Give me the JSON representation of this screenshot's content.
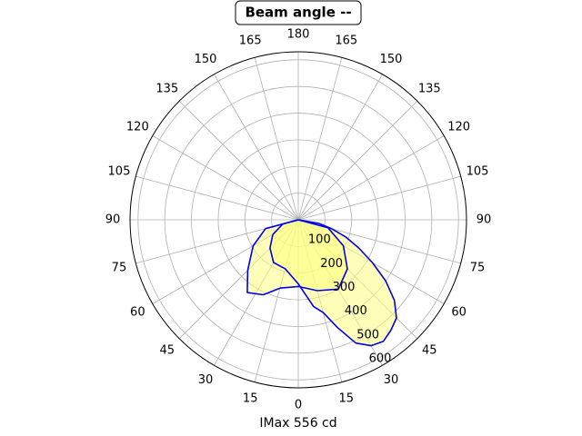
{
  "chart_data": {
    "type": "polar",
    "title": "Beam angle --",
    "xlabel": "IMax 556 cd",
    "xticks": [
      0,
      15,
      30,
      45,
      60,
      75,
      90,
      105,
      120,
      135,
      150,
      165,
      180
    ],
    "ylim": [
      0,
      630
    ],
    "yticks": [
      100,
      200,
      300,
      400,
      500,
      600
    ],
    "grid": true,
    "fill_color": "#ffff80",
    "series": [
      {
        "color": "#0000ee",
        "x": [
          -90,
          -75,
          -60,
          -45,
          -35,
          -25,
          -15,
          0,
          15,
          30,
          45,
          60,
          75,
          90
        ],
        "values": [
          0,
          127,
          195,
          268,
          333,
          310,
          265,
          250,
          275,
          300,
          260,
          195,
          115,
          0
        ]
      },
      {
        "color": "#0000ee",
        "x": [
          -90,
          -75,
          -60,
          -45,
          -30,
          -15,
          0,
          10,
          15,
          20,
          25,
          30,
          35,
          40,
          45,
          50,
          55,
          60,
          65,
          70,
          75,
          80,
          90
        ],
        "values": [
          0,
          60,
          110,
          150,
          185,
          190,
          240,
          330,
          360,
          430,
          510,
          545,
          556,
          540,
          520,
          470,
          400,
          320,
          250,
          190,
          130,
          80,
          0
        ]
      }
    ]
  }
}
